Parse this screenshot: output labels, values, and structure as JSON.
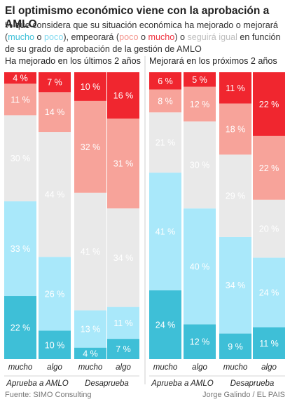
{
  "title": "El optimismo económico viene con la aprobación a AMLO",
  "subtitle": {
    "part1": "% que considera que su situación económica ha mejorado o mejorará",
    "p_open": "(",
    "mucho1": "mucho",
    "o1": " o ",
    "poco1": "poco",
    "mid": "), empeorará (",
    "poco2": "poco",
    "o2": " o ",
    "mucho2": "mucho",
    "p_close": ") o ",
    "seguira": "seguirá igual",
    "end": " en función de su grado de aprobación de la gestión de AMLO"
  },
  "source": "Fuente: SIMO Consulting",
  "credit": "Jorge Galindo / EL PAIS",
  "colors": {
    "mucho_mejor": "#3ebfd7",
    "poco_mejor": "#a9e8fa",
    "igual": "#e9e9e9",
    "poco_peor": "#f7a39a",
    "mucho_peor": "#f0262f"
  },
  "chart_data": [
    {
      "type": "bar",
      "stacked": true,
      "title": "Ha mejorado en los últimos 2 años",
      "categories": [
        "mucho",
        "algo",
        "mucho",
        "algo"
      ],
      "groups": [
        {
          "label": "Aprueba a AMLO",
          "categories": [
            "mucho",
            "algo"
          ]
        },
        {
          "label": "Desaprueba",
          "categories": [
            "mucho",
            "algo"
          ]
        }
      ],
      "series": [
        {
          "key": "mucho_mejor",
          "values": [
            22,
            10,
            4,
            7
          ]
        },
        {
          "key": "poco_mejor",
          "values": [
            33,
            26,
            13,
            11
          ]
        },
        {
          "key": "igual",
          "values": [
            30,
            44,
            41,
            34
          ]
        },
        {
          "key": "poco_peor",
          "values": [
            11,
            14,
            32,
            31
          ]
        },
        {
          "key": "mucho_peor",
          "values": [
            4,
            7,
            10,
            16
          ]
        }
      ],
      "ylim": [
        0,
        100
      ]
    },
    {
      "type": "bar",
      "stacked": true,
      "title": "Mejorará en los próximos 2 años",
      "categories": [
        "mucho",
        "algo",
        "mucho",
        "algo"
      ],
      "groups": [
        {
          "label": "Aprueba a AMLO",
          "categories": [
            "mucho",
            "algo"
          ]
        },
        {
          "label": "Desaprueba",
          "categories": [
            "mucho",
            "algo"
          ]
        }
      ],
      "series": [
        {
          "key": "mucho_mejor",
          "values": [
            24,
            12,
            9,
            11
          ]
        },
        {
          "key": "poco_mejor",
          "values": [
            41,
            40,
            34,
            24
          ]
        },
        {
          "key": "igual",
          "values": [
            21,
            30,
            29,
            20
          ]
        },
        {
          "key": "poco_peor",
          "values": [
            8,
            12,
            18,
            22
          ]
        },
        {
          "key": "mucho_peor",
          "values": [
            6,
            5,
            11,
            22
          ]
        }
      ],
      "ylim": [
        0,
        100
      ]
    }
  ]
}
